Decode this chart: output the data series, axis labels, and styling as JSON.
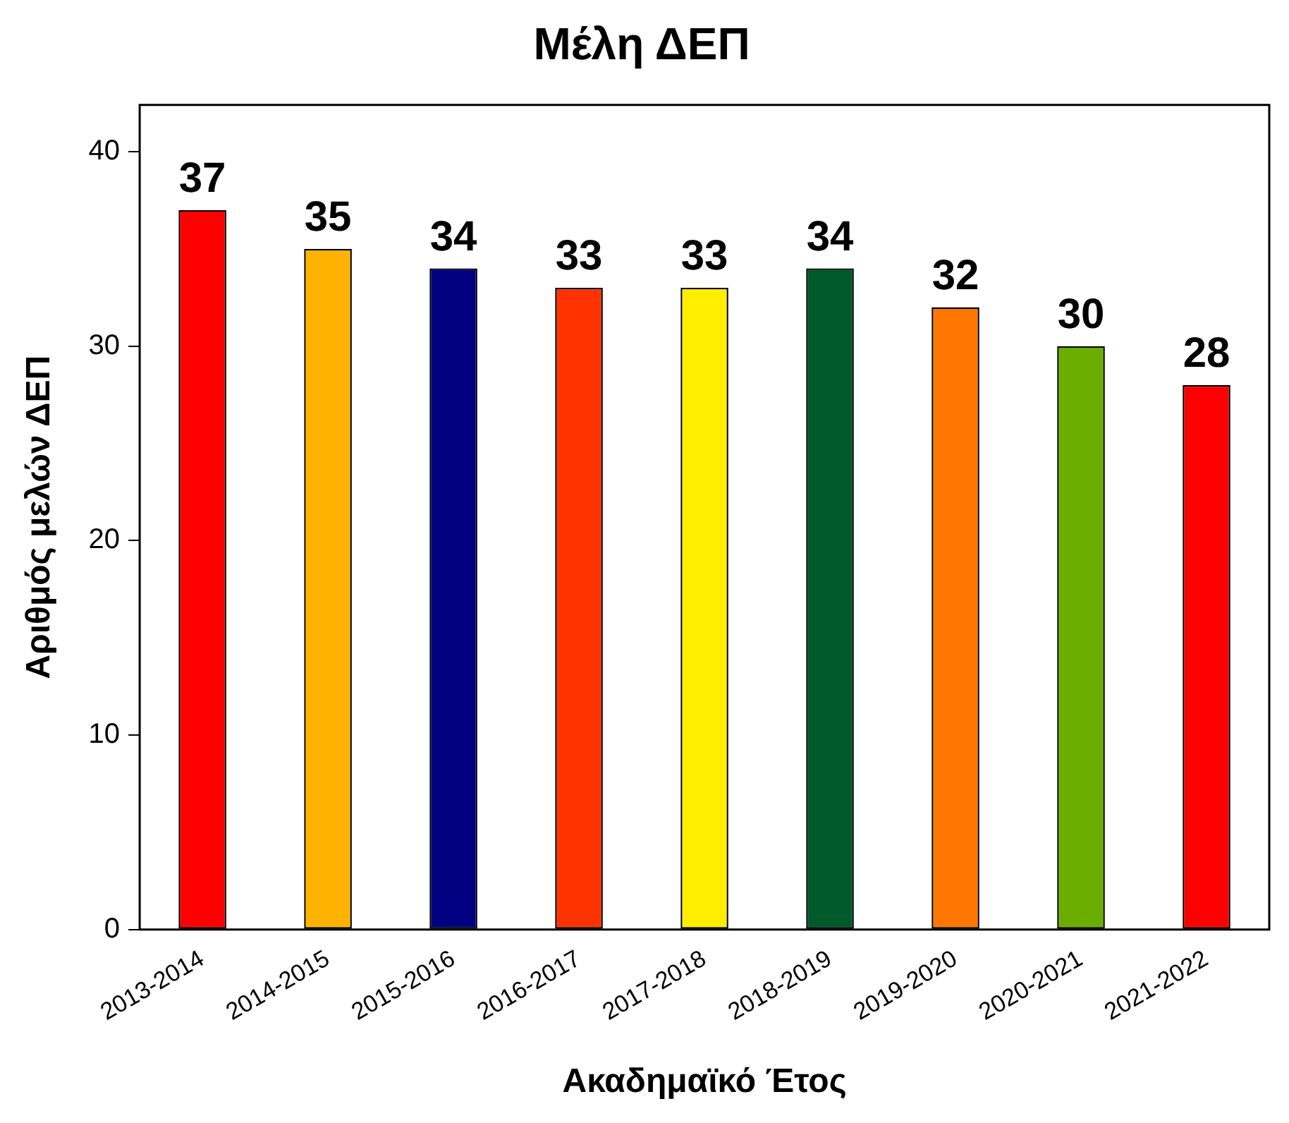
{
  "chart_data": {
    "type": "bar",
    "title": "Μέλη ΔΕΠ",
    "xlabel": "Ακαδημαϊκό Έτος",
    "ylabel": "Αριθμός μελών ΔΕΠ",
    "categories": [
      "2013-2014",
      "2014-2015",
      "2015-2016",
      "2016-2017",
      "2017-2018",
      "2018-2019",
      "2019-2020",
      "2020-2021",
      "2021-2022"
    ],
    "values": [
      37,
      35,
      34,
      33,
      33,
      34,
      32,
      30,
      28
    ],
    "colors": [
      "#ff0000",
      "#ffb300",
      "#000080",
      "#ff3300",
      "#ffee00",
      "#005a2b",
      "#ff7700",
      "#6aaf00",
      "#ff0000"
    ],
    "ylim": [
      0,
      42.4
    ],
    "yticks": [
      0,
      10,
      20,
      30,
      40
    ],
    "grid": false,
    "legend": false,
    "data_labels": true
  }
}
